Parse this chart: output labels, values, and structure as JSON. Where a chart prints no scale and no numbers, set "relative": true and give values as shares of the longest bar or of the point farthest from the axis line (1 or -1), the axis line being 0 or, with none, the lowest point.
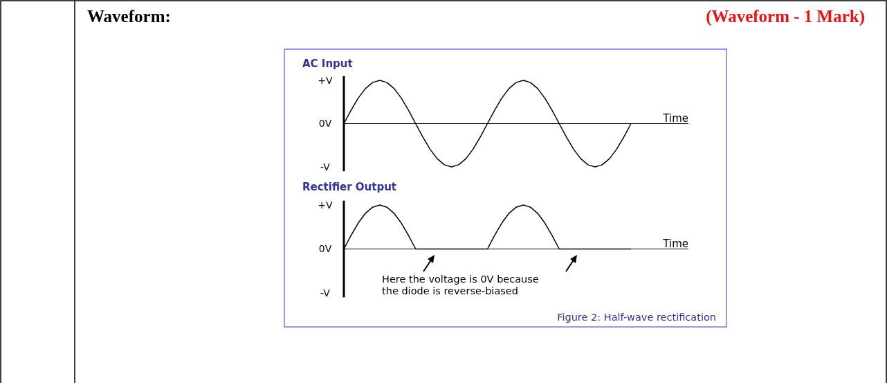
{
  "chart_data": [
    {
      "type": "line",
      "title": "AC Input",
      "xlabel": "Time",
      "annotations": [
        "Waveform:",
        "(Waveform - 1 Mark)",
        "+V",
        "0V",
        "-V"
      ],
      "categories": [
        null,
        null,
        null,
        null,
        null,
        null,
        null,
        null,
        null,
        null,
        null,
        null,
        null,
        null,
        null,
        null,
        null,
        null,
        null,
        null,
        null,
        null,
        null,
        null,
        null,
        null,
        null,
        null,
        null,
        null,
        null,
        null,
        null,
        null,
        null,
        null,
        null,
        null,
        null,
        null,
        null,
        null,
        null,
        null,
        null,
        null,
        null,
        null,
        null
      ],
      "series": [
        {
          "color": "#000000",
          "values": [
            0,
            0.31,
            0.59,
            0.81,
            0.95,
            1,
            0.95,
            0.81,
            0.59,
            0.31,
            0,
            -0.31,
            -0.59,
            -0.81,
            -0.95,
            -1,
            -0.95,
            -0.81,
            -0.59,
            -0.31,
            0,
            0.31,
            0.59,
            0.81,
            0.95,
            1,
            0.95,
            0.81,
            0.59,
            0.31,
            0,
            -0.31,
            -0.59,
            -0.81,
            -0.95,
            -1,
            -0.95,
            -0.81,
            -0.59,
            -0.31,
            0,
            null,
            null,
            null,
            null,
            null,
            null,
            null,
            null
          ]
        }
      ],
      "relative": true
    },
    {
      "type": "line",
      "title": "Rectifier Output",
      "xlabel": "Time",
      "annotations": [
        "Here the voltage is 0V because the diode is reverse-biased",
        "Figure 2: Half-wave rectification",
        "+V",
        "0V",
        "-V"
      ],
      "categories": [
        null,
        null,
        null,
        null,
        null,
        null,
        null,
        null,
        null,
        null,
        null,
        null,
        null,
        null,
        null,
        null,
        null,
        null,
        null,
        null,
        null,
        null,
        null,
        null,
        null,
        null,
        null,
        null,
        null,
        null,
        null,
        null,
        null,
        null,
        null,
        null,
        null,
        null,
        null,
        null,
        null,
        null,
        null,
        null,
        null,
        null,
        null,
        null,
        null
      ],
      "series": [
        {
          "color": "#000000",
          "values": [
            0,
            0.31,
            0.59,
            0.81,
            0.95,
            1,
            0.95,
            0.81,
            0.59,
            0.31,
            0,
            0,
            0,
            0,
            0,
            0,
            0,
            0,
            0,
            0,
            0,
            0.31,
            0.59,
            0.81,
            0.95,
            1,
            0.95,
            0.81,
            0.59,
            0.31,
            0,
            0,
            0,
            0,
            0,
            0,
            0,
            0,
            0,
            0,
            0,
            null,
            null,
            null,
            null,
            null,
            null,
            null,
            null
          ]
        }
      ],
      "relative": true
    }
  ]
}
